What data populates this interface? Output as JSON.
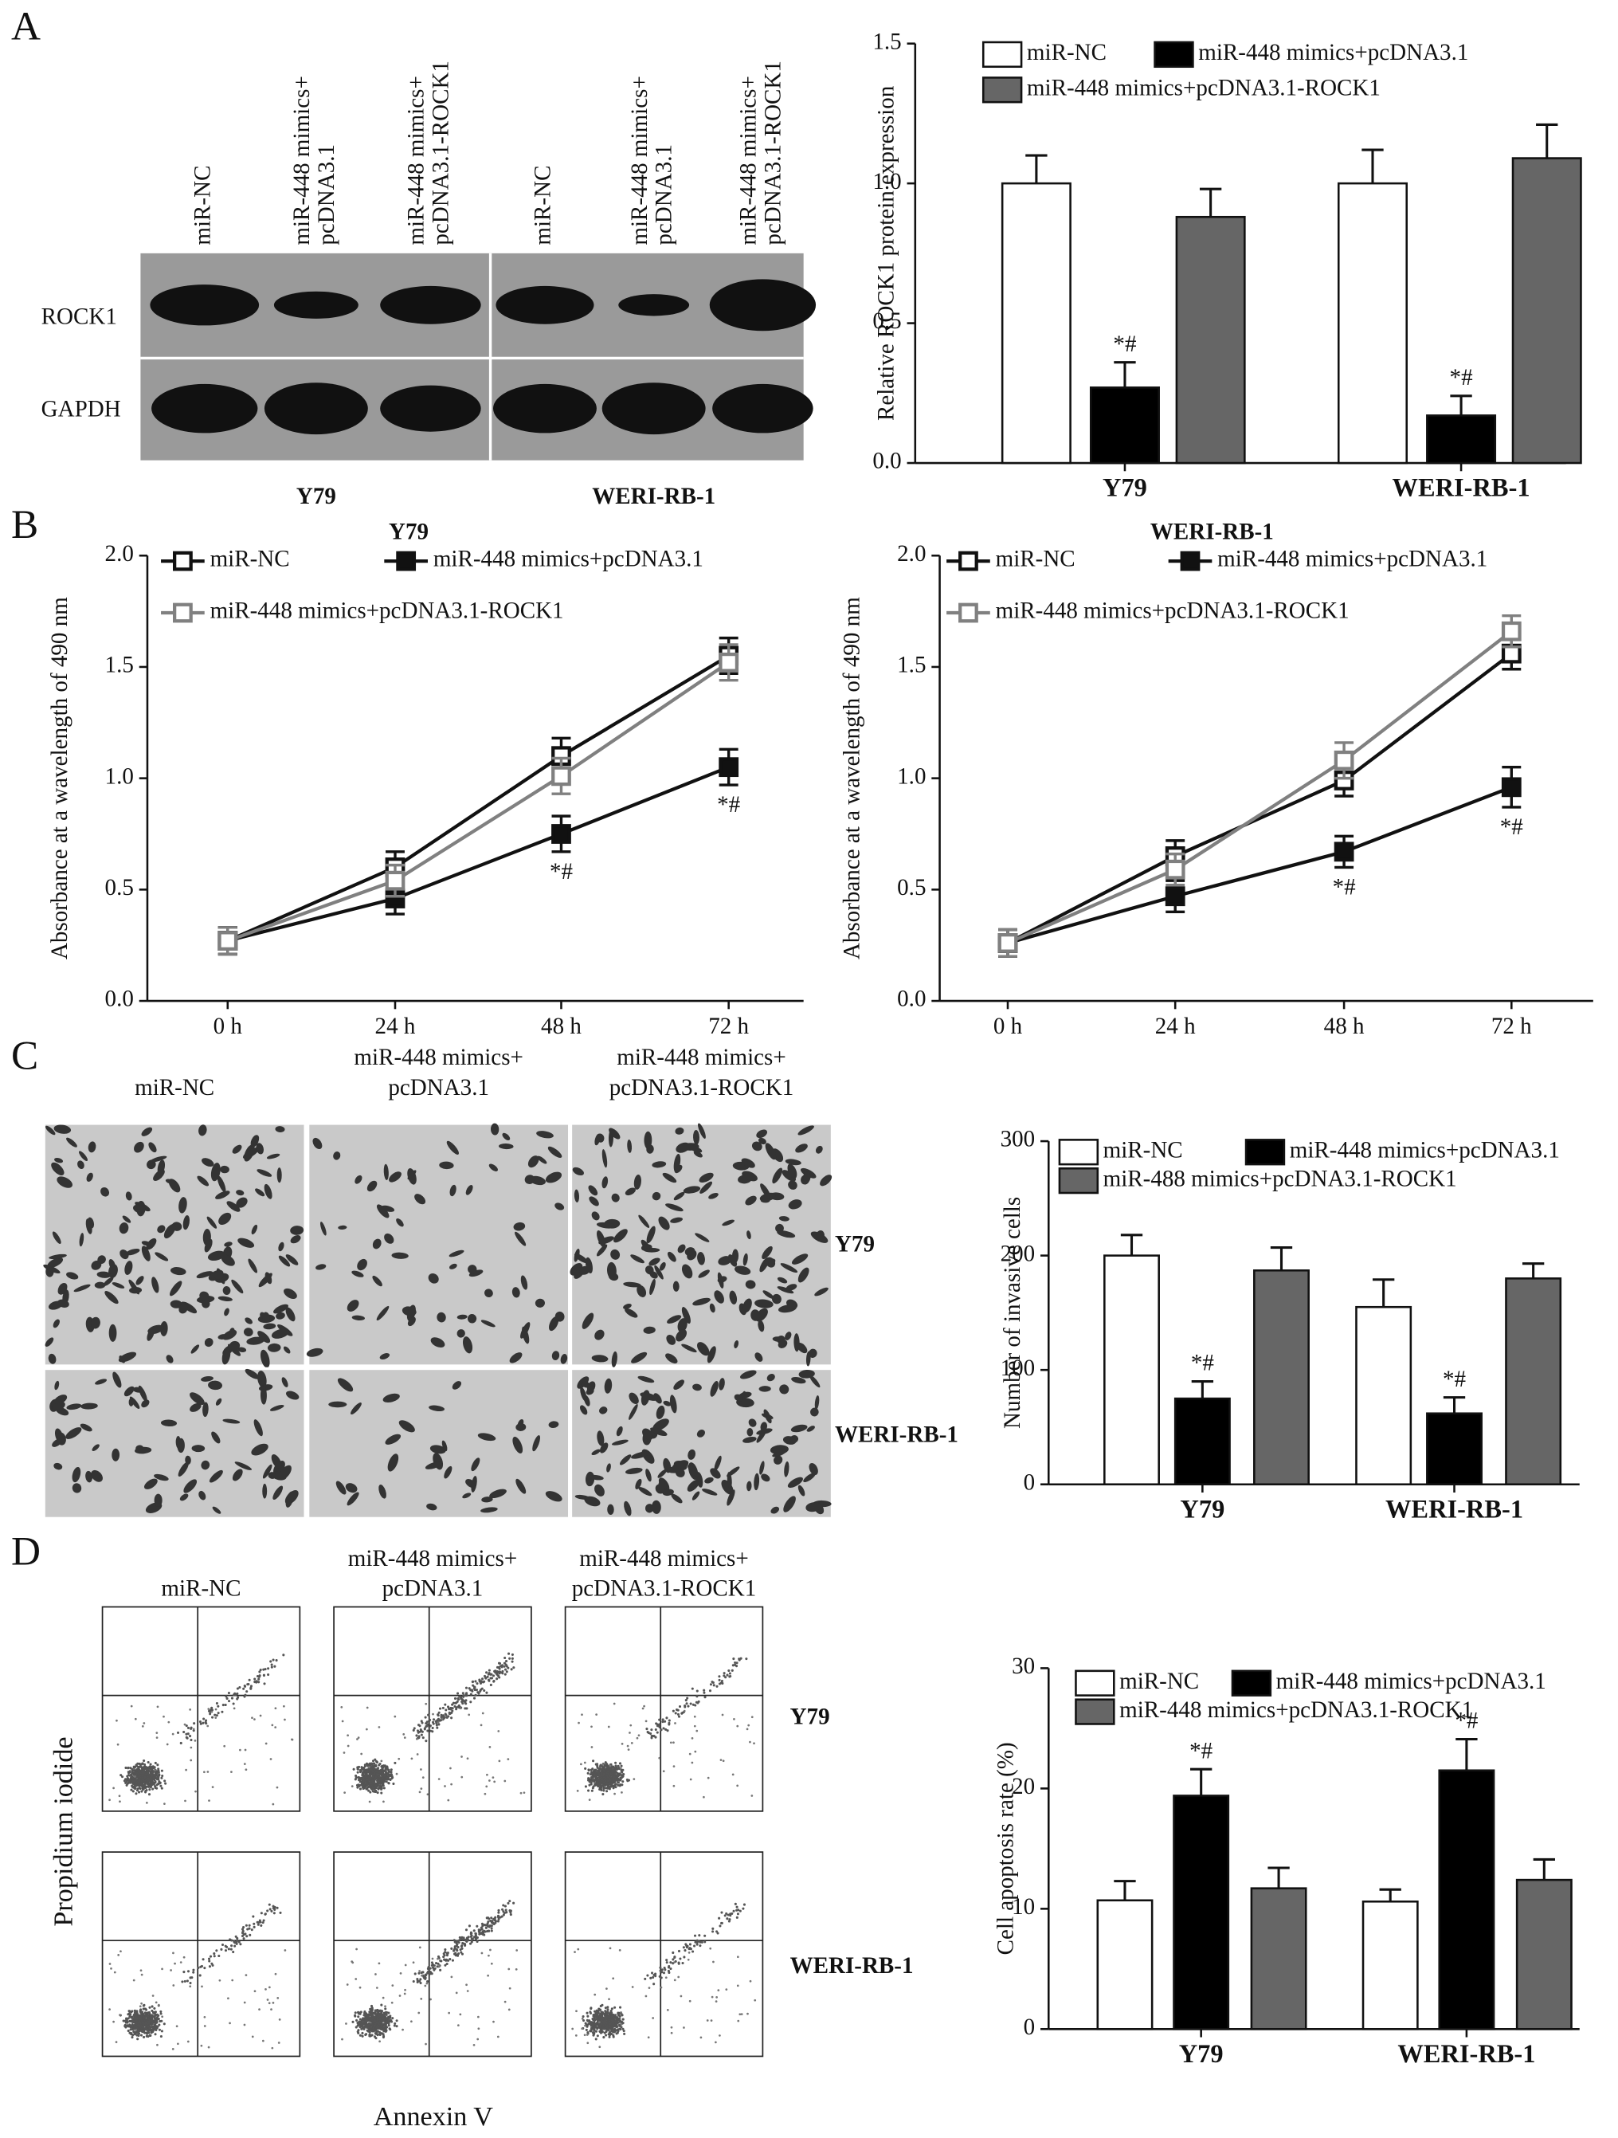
{
  "panel_labels": [
    "A",
    "B",
    "C",
    "D"
  ],
  "blot": {
    "lanes": [
      [
        "miR-NC"
      ],
      [
        "miR-448 mimics+",
        "pcDNA3.1"
      ],
      [
        "miR-448 mimics+",
        "pcDNA3.1-ROCK1"
      ],
      [
        "miR-NC"
      ],
      [
        "miR-448 mimics+",
        "pcDNA3.1"
      ],
      [
        "miR-448 mimics+",
        "pcDNA3.1-ROCK1"
      ]
    ],
    "rows": [
      "ROCK1",
      "GAPDH"
    ],
    "cell_lines": [
      "Y79",
      "WERI-RB-1"
    ]
  },
  "invasion_images": {
    "columns": [
      [
        "miR-NC"
      ],
      [
        "miR-448 mimics+",
        "pcDNA3.1"
      ],
      [
        "miR-448 mimics+",
        "pcDNA3.1-ROCK1"
      ]
    ],
    "rows": [
      "Y79",
      "WERI-RB-1"
    ]
  },
  "flow": {
    "columns": [
      [
        "miR-NC"
      ],
      [
        "miR-448 mimics+",
        "pcDNA3.1"
      ],
      [
        "miR-448 mimics+",
        "pcDNA3.1-ROCK1"
      ]
    ],
    "rows": [
      "Y79",
      "WERI-RB-1"
    ],
    "y_label": "Propidium iodide",
    "x_label": "Annexin V"
  },
  "chart_data": [
    {
      "type": "bar",
      "y_label": "Relative ROCK1 protein expression",
      "categories": [
        "Y79",
        "WERI-RB-1"
      ],
      "series": [
        {
          "name": "miR-NC",
          "color": "#ffffff",
          "values": [
            1.0,
            1.0
          ],
          "errors": [
            0.1,
            0.12
          ]
        },
        {
          "name": "miR-448 mimics+pcDNA3.1",
          "color": "#000000",
          "values": [
            0.27,
            0.17
          ],
          "errors": [
            0.09,
            0.07
          ],
          "annotation": [
            "*#",
            "*#"
          ]
        },
        {
          "name": "miR-448 mimics+pcDNA3.1-ROCK1",
          "color": "#666666",
          "values": [
            0.88,
            1.09
          ],
          "errors": [
            0.1,
            0.12
          ]
        }
      ],
      "ylim": [
        0,
        1.5
      ],
      "yticks": [
        {
          "value": 0,
          "label": "0.0"
        },
        0.5,
        {
          "value": 1,
          "label": "1.0"
        },
        1.5
      ]
    },
    {
      "type": "line",
      "title": "Y79",
      "y_label": "Absorbance at a wavelength of 490 nm",
      "categories": [
        "0 h",
        "24 h",
        "48 h",
        "72 h"
      ],
      "series": [
        {
          "name": "miR-NC",
          "color": "#111111",
          "marker": "open-square",
          "values": [
            0.27,
            0.6,
            1.1,
            1.55
          ],
          "errors": [
            0.06,
            0.07,
            0.08,
            0.08
          ]
        },
        {
          "name": "miR-448 mimics+pcDNA3.1",
          "color": "#111111",
          "marker": "filled-square",
          "values": [
            0.27,
            0.46,
            0.75,
            1.05
          ],
          "errors": [
            0.06,
            0.07,
            0.08,
            0.08
          ],
          "annotation": [
            null,
            null,
            "*#",
            "*#"
          ]
        },
        {
          "name": "miR-448 mimics+pcDNA3.1-ROCK1",
          "color": "#808080",
          "marker": "open-square",
          "values": [
            0.27,
            0.54,
            1.01,
            1.52
          ],
          "errors": [
            0.06,
            0.07,
            0.08,
            0.08
          ]
        }
      ],
      "ylim": [
        0,
        2.0
      ],
      "yticks": [
        {
          "value": 0,
          "label": "0.0"
        },
        0.5,
        {
          "value": 1,
          "label": "1.0"
        },
        1.5,
        {
          "value": 2,
          "label": "2.0"
        }
      ]
    },
    {
      "type": "line",
      "title": "WERI-RB-1",
      "y_label": "Absorbance at a wavelength of 490 nm",
      "categories": [
        "0 h",
        "24 h",
        "48 h",
        "72 h"
      ],
      "series": [
        {
          "name": "miR-NC",
          "color": "#111111",
          "marker": "open-square",
          "values": [
            0.26,
            0.65,
            0.99,
            1.56
          ],
          "errors": [
            0.06,
            0.07,
            0.07,
            0.07
          ]
        },
        {
          "name": "miR-448 mimics+pcDNA3.1",
          "color": "#111111",
          "marker": "filled-square",
          "values": [
            0.26,
            0.47,
            0.67,
            0.96
          ],
          "errors": [
            0.06,
            0.07,
            0.07,
            0.09
          ],
          "annotation": [
            null,
            null,
            "*#",
            "*#"
          ]
        },
        {
          "name": "miR-448 mimics+pcDNA3.1-ROCK1",
          "color": "#808080",
          "marker": "open-square",
          "values": [
            0.26,
            0.59,
            1.08,
            1.66
          ],
          "errors": [
            0.06,
            0.07,
            0.08,
            0.07
          ]
        }
      ],
      "ylim": [
        0,
        2.0
      ],
      "yticks": [
        {
          "value": 0,
          "label": "0.0"
        },
        0.5,
        {
          "value": 1,
          "label": "1.0"
        },
        1.5,
        {
          "value": 2,
          "label": "2.0"
        }
      ]
    },
    {
      "type": "bar",
      "y_label": "Number of invasive cells",
      "categories": [
        "Y79",
        "WERI-RB-1"
      ],
      "series": [
        {
          "name": "miR-NC",
          "color": "#ffffff",
          "values": [
            200,
            155
          ],
          "errors": [
            18,
            24
          ]
        },
        {
          "name": "miR-448 mimics+pcDNA3.1",
          "color": "#000000",
          "values": [
            75,
            62
          ],
          "errors": [
            15,
            14
          ],
          "annotation": [
            "*#",
            "*#"
          ]
        },
        {
          "name": "miR-488 mimics+pcDNA3.1-ROCK1",
          "color": "#666666",
          "values": [
            187,
            180
          ],
          "errors": [
            20,
            13
          ]
        }
      ],
      "ylim": [
        0,
        300
      ],
      "yticks": [
        0,
        100,
        200,
        300
      ]
    },
    {
      "type": "bar",
      "y_label": "Cell apoptosis rate (%)",
      "categories": [
        "Y79",
        "WERI-RB-1"
      ],
      "series": [
        {
          "name": "miR-NC",
          "color": "#ffffff",
          "values": [
            10.7,
            10.6
          ],
          "errors": [
            1.6,
            1.0
          ]
        },
        {
          "name": "miR-448 mimics+pcDNA3.1",
          "color": "#000000",
          "values": [
            19.4,
            21.5
          ],
          "errors": [
            2.2,
            2.6
          ],
          "annotation": [
            "*#",
            "*#"
          ]
        },
        {
          "name": "miR-448 mimics+pcDNA3.1-ROCK1",
          "color": "#666666",
          "values": [
            11.7,
            12.4
          ],
          "errors": [
            1.7,
            1.7
          ]
        }
      ],
      "ylim": [
        0,
        30
      ],
      "yticks": [
        0,
        10,
        20,
        30
      ]
    }
  ]
}
